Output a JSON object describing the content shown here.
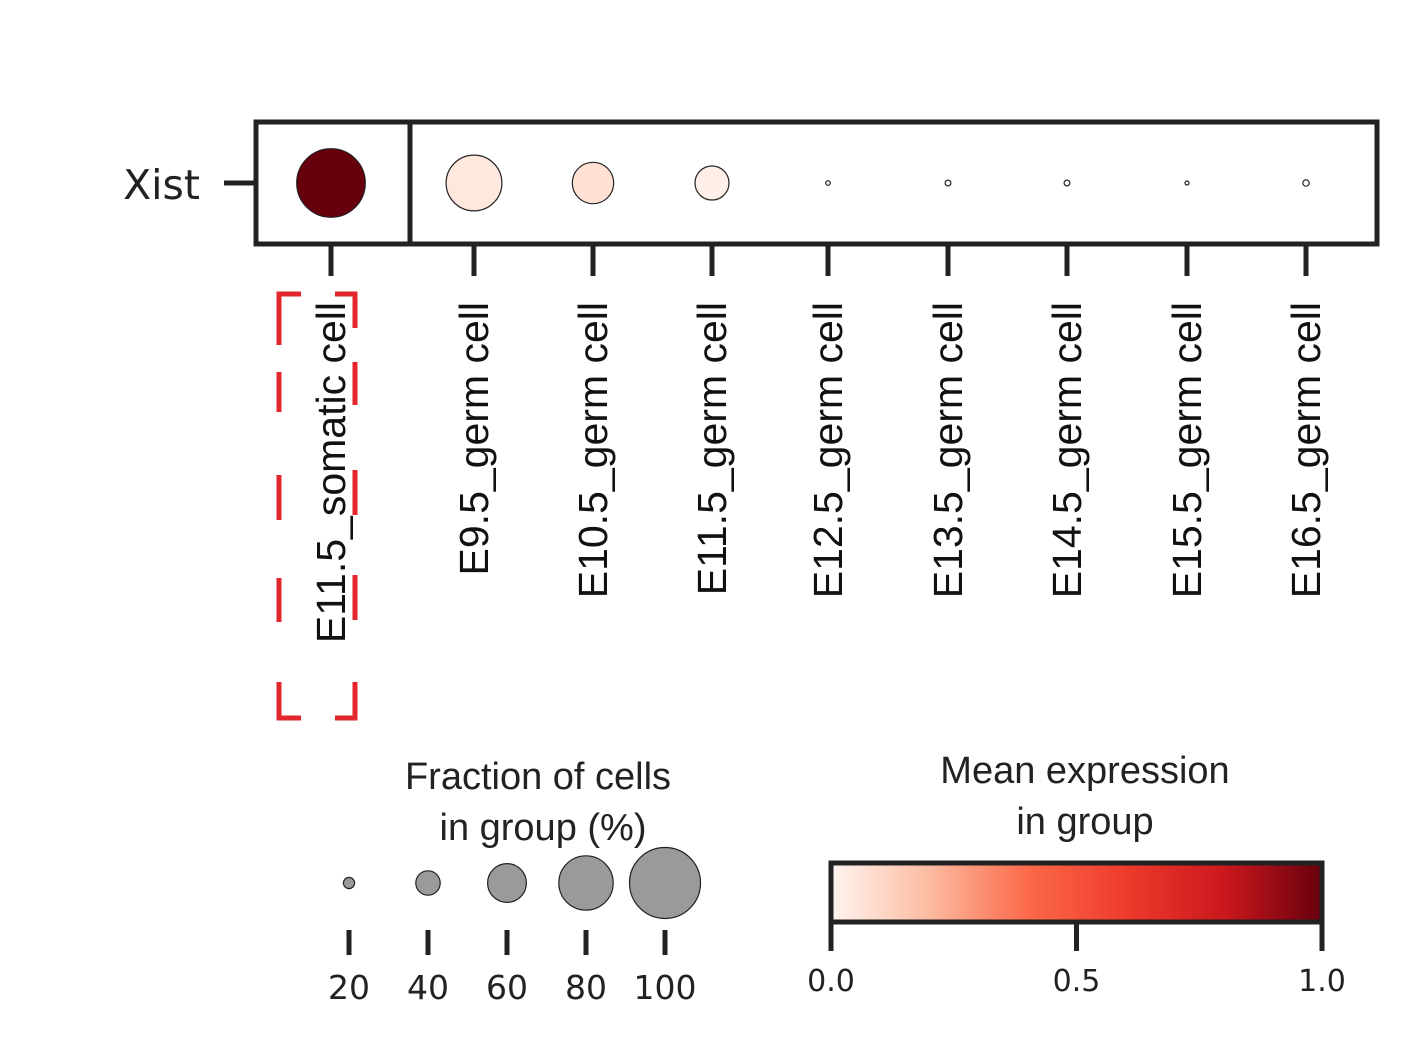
{
  "chart_data": {
    "type": "dotplot",
    "genes": [
      "Xist"
    ],
    "categories": [
      "E11.5_somatic cell",
      "E9.5_germ cell",
      "E10.5_germ cell",
      "E11.5_germ cell",
      "E12.5_germ cell",
      "E13.5_germ cell",
      "E14.5_germ cell",
      "E15.5_germ cell",
      "E16.5_germ cell"
    ],
    "fraction_of_cells_pct": [
      95,
      80,
      62,
      52,
      8,
      10,
      10,
      1,
      11
    ],
    "mean_expression": [
      1.0,
      0.05,
      0.07,
      0.02,
      0.0,
      0.0,
      0.0,
      0.0,
      0.0
    ],
    "highlighted_category": "E11.5_somatic cell",
    "highlight_color": "#e3262b",
    "size_legend": {
      "title_line1": "Fraction of cells",
      "title_line2": "in group (%)",
      "values": [
        20,
        40,
        60,
        80,
        100
      ],
      "dot_color": "#999a9c"
    },
    "color_legend": {
      "title_line1": "Mean expression",
      "title_line2": "in group",
      "ticks": [
        "0.0",
        "0.5",
        "1.0"
      ],
      "range": [
        0.0,
        1.0
      ],
      "colormap": "Reds",
      "colors": [
        "#fff5f0",
        "#fcbba1",
        "#fb6a4a",
        "#ef3b2c",
        "#cb181d",
        "#67000d"
      ]
    },
    "grid": false
  }
}
